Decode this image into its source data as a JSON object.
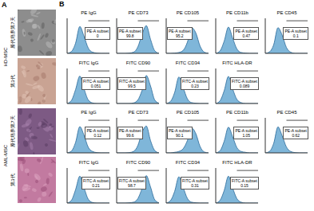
{
  "panel_a": {
    "letter": "A",
    "groups": [
      {
        "label": "HD-MSC",
        "images": [
          "原代培养第7天",
          "第3代"
        ]
      },
      {
        "label": "AML-MSC",
        "images": [
          "原代培养第7天",
          "第3代"
        ]
      }
    ]
  },
  "panel_b": {
    "letter": "B"
  },
  "chart_data": [
    {
      "type": "area",
      "title": "PE IgG",
      "x": [
        0,
        1,
        2,
        3,
        4,
        5,
        6,
        7,
        8,
        9,
        10
      ],
      "values": [
        0,
        6,
        35,
        92,
        58,
        18,
        4,
        1,
        0,
        0,
        0
      ],
      "gate": [
        5,
        10
      ],
      "gate_label": "PE-A subset",
      "gate_value": 0,
      "xlim": [
        0,
        10
      ],
      "ylim": [
        0,
        120
      ],
      "tick_labels": false,
      "color": "#7fb6d9"
    },
    {
      "type": "area",
      "title": "PE CD73",
      "x": [
        0,
        1,
        2,
        3,
        4,
        5,
        6,
        7,
        8,
        9,
        10
      ],
      "values": [
        0,
        0,
        0,
        1,
        4,
        22,
        65,
        95,
        48,
        9,
        0
      ],
      "gate": [
        5,
        10
      ],
      "gate_label": "PE-A subset",
      "gate_value": 99.8,
      "xlim": [
        0,
        10
      ],
      "ylim": [
        0,
        120
      ],
      "tick_labels": false,
      "color": "#7fb6d9"
    },
    {
      "type": "area",
      "title": "PE CD105",
      "x": [
        0,
        1,
        2,
        3,
        4,
        5,
        6,
        7,
        8,
        9,
        10
      ],
      "values": [
        0,
        0,
        1,
        3,
        10,
        38,
        88,
        70,
        25,
        4,
        0
      ],
      "gate": [
        5,
        10
      ],
      "gate_label": "PE-A subset",
      "gate_value": 95.2,
      "xlim": [
        0,
        10
      ],
      "ylim": [
        0,
        120
      ],
      "tick_labels": false,
      "color": "#7fb6d9"
    },
    {
      "type": "area",
      "title": "PE CD11b",
      "x": [
        0,
        1,
        2,
        3,
        4,
        5,
        6,
        7,
        8,
        9,
        10
      ],
      "values": [
        0,
        8,
        42,
        90,
        52,
        15,
        3,
        1,
        0,
        0,
        0
      ],
      "gate": [
        5,
        10
      ],
      "gate_label": "PE-A subset",
      "gate_value": 0.47,
      "xlim": [
        0,
        10
      ],
      "ylim": [
        0,
        120
      ],
      "tick_labels": false,
      "color": "#7fb6d9"
    },
    {
      "type": "area",
      "title": "PE CD45",
      "x": [
        0,
        1,
        2,
        3,
        4,
        5,
        6,
        7,
        8,
        9,
        10
      ],
      "values": [
        0,
        5,
        30,
        88,
        62,
        20,
        4,
        0,
        0,
        0,
        0
      ],
      "gate": [
        5,
        10
      ],
      "gate_label": "PE-A subset",
      "gate_value": 0.1,
      "xlim": [
        0,
        10
      ],
      "ylim": [
        0,
        120
      ],
      "tick_labels": false,
      "color": "#7fb6d9"
    },
    {
      "type": "area",
      "title": "FITC IgG",
      "x": [
        0,
        1,
        2,
        3,
        4,
        5,
        6,
        7,
        8,
        9,
        10
      ],
      "values": [
        0,
        10,
        48,
        94,
        50,
        12,
        2,
        0,
        0,
        0,
        0
      ],
      "gate": [
        5,
        10
      ],
      "gate_label": "FITC-A subset",
      "gate_value": 0.051,
      "xlim": [
        0,
        10
      ],
      "ylim": [
        0,
        120
      ],
      "tick_labels": false,
      "color": "#7fb6d9"
    },
    {
      "type": "area",
      "title": "FITC CD90",
      "x": [
        0,
        1,
        2,
        3,
        4,
        5,
        6,
        7,
        8,
        9,
        10
      ],
      "values": [
        0,
        0,
        0,
        0,
        2,
        12,
        45,
        96,
        60,
        12,
        1
      ],
      "gate": [
        5,
        10
      ],
      "gate_label": "FITC-A subset",
      "gate_value": 99.5,
      "xlim": [
        0,
        10
      ],
      "ylim": [
        0,
        120
      ],
      "tick_labels": false,
      "color": "#7fb6d9"
    },
    {
      "type": "area",
      "title": "FITC CD34",
      "x": [
        0,
        1,
        2,
        3,
        4,
        5,
        6,
        7,
        8,
        9,
        10
      ],
      "values": [
        0,
        7,
        38,
        91,
        55,
        16,
        3,
        1,
        0,
        0,
        0
      ],
      "gate": [
        5,
        10
      ],
      "gate_label": "FITC-A subset",
      "gate_value": 0.23,
      "xlim": [
        0,
        10
      ],
      "ylim": [
        0,
        120
      ],
      "tick_labels": false,
      "color": "#7fb6d9"
    },
    {
      "type": "area",
      "title": "FITC HLA-DR",
      "x": [
        0,
        1,
        2,
        3,
        4,
        5,
        6,
        7,
        8,
        9,
        10
      ],
      "values": [
        0,
        9,
        44,
        93,
        50,
        14,
        3,
        0,
        0,
        0,
        0
      ],
      "gate": [
        5,
        10
      ],
      "gate_label": "FITC-A subset",
      "gate_value": 0.089,
      "xlim": [
        0,
        10
      ],
      "ylim": [
        0,
        120
      ],
      "tick_labels": false,
      "color": "#7fb6d9"
    },
    {
      "type": "area",
      "title": "PE IgG",
      "x": [
        0,
        1,
        2,
        3,
        4,
        5,
        6,
        7,
        8,
        9,
        10
      ],
      "values": [
        0,
        6,
        36,
        90,
        60,
        19,
        5,
        1,
        0,
        0,
        0
      ],
      "gate": [
        5,
        10
      ],
      "gate_label": "PE-A subset",
      "gate_value": 0.12,
      "xlim": [
        0,
        10
      ],
      "ylim": [
        0,
        120
      ],
      "tick_labels": false,
      "color": "#7fb6d9"
    },
    {
      "type": "area",
      "title": "PE CD73",
      "x": [
        0,
        1,
        2,
        3,
        4,
        5,
        6,
        7,
        8,
        9,
        10
      ],
      "values": [
        0,
        0,
        0,
        1,
        5,
        25,
        70,
        92,
        42,
        8,
        0
      ],
      "gate": [
        5,
        10
      ],
      "gate_label": "PE-A subset",
      "gate_value": 99.6,
      "xlim": [
        0,
        10
      ],
      "ylim": [
        0,
        120
      ],
      "tick_labels": false,
      "color": "#7fb6d9"
    },
    {
      "type": "area",
      "title": "PE CD105",
      "x": [
        0,
        1,
        2,
        3,
        4,
        5,
        6,
        7,
        8,
        9,
        10
      ],
      "values": [
        0,
        0,
        2,
        5,
        14,
        42,
        85,
        66,
        22,
        3,
        0
      ],
      "gate": [
        5,
        10
      ],
      "gate_label": "PE-A subset",
      "gate_value": 90.1,
      "xlim": [
        0,
        10
      ],
      "ylim": [
        0,
        120
      ],
      "tick_labels": false,
      "color": "#7fb6d9"
    },
    {
      "type": "area",
      "title": "PE CD11b",
      "x": [
        0,
        1,
        2,
        3,
        4,
        5,
        6,
        7,
        8,
        9,
        10
      ],
      "values": [
        0,
        7,
        40,
        88,
        55,
        18,
        5,
        2,
        0,
        0,
        0
      ],
      "gate": [
        5,
        10
      ],
      "gate_label": "PE-A subset",
      "gate_value": 1.05,
      "xlim": [
        0,
        10
      ],
      "ylim": [
        0,
        120
      ],
      "tick_labels": false,
      "color": "#7fb6d9"
    },
    {
      "type": "area",
      "title": "PE CD45",
      "x": [
        0,
        1,
        2,
        3,
        4,
        5,
        6,
        7,
        8,
        9,
        10
      ],
      "values": [
        0,
        5,
        33,
        89,
        58,
        20,
        5,
        1,
        0,
        0,
        0
      ],
      "gate": [
        5,
        10
      ],
      "gate_label": "PE-A subset",
      "gate_value": 0.62,
      "xlim": [
        0,
        10
      ],
      "ylim": [
        0,
        120
      ],
      "tick_labels": false,
      "color": "#7fb6d9"
    },
    {
      "type": "area",
      "title": "FITC IgG",
      "x": [
        0,
        1,
        2,
        3,
        4,
        5,
        6,
        7,
        8,
        9,
        10
      ],
      "values": [
        0,
        9,
        46,
        92,
        52,
        13,
        2,
        0,
        0,
        0,
        0
      ],
      "gate": [
        5,
        10
      ],
      "gate_label": "FITC-A subset",
      "gate_value": 0.21,
      "xlim": [
        0,
        10
      ],
      "ylim": [
        0,
        120
      ],
      "tick_labels": false,
      "color": "#7fb6d9"
    },
    {
      "type": "area",
      "title": "FITC CD90",
      "x": [
        0,
        1,
        2,
        3,
        4,
        5,
        6,
        7,
        8,
        9,
        10
      ],
      "values": [
        0,
        0,
        0,
        1,
        3,
        15,
        50,
        94,
        55,
        11,
        1
      ],
      "gate": [
        5,
        10
      ],
      "gate_label": "FITC-A subset",
      "gate_value": 98.7,
      "xlim": [
        0,
        10
      ],
      "ylim": [
        0,
        120
      ],
      "tick_labels": false,
      "color": "#7fb6d9"
    },
    {
      "type": "area",
      "title": "FITC CD34",
      "x": [
        0,
        1,
        2,
        3,
        4,
        5,
        6,
        7,
        8,
        9,
        10
      ],
      "values": [
        0,
        8,
        40,
        90,
        54,
        16,
        3,
        1,
        0,
        0,
        0
      ],
      "gate": [
        5,
        10
      ],
      "gate_label": "FITC-A subset",
      "gate_value": 0.31,
      "xlim": [
        0,
        10
      ],
      "ylim": [
        0,
        120
      ],
      "tick_labels": false,
      "color": "#7fb6d9"
    },
    {
      "type": "area",
      "title": "FITC HLA-DR",
      "x": [
        0,
        1,
        2,
        3,
        4,
        5,
        6,
        7,
        8,
        9,
        10
      ],
      "values": [
        0,
        9,
        43,
        92,
        51,
        15,
        3,
        0,
        0,
        0,
        0
      ],
      "gate": [
        5,
        10
      ],
      "gate_label": "FITC-A subset",
      "gate_value": 0.15,
      "xlim": [
        0,
        10
      ],
      "ylim": [
        0,
        120
      ],
      "tick_labels": false,
      "color": "#7fb6d9"
    }
  ]
}
